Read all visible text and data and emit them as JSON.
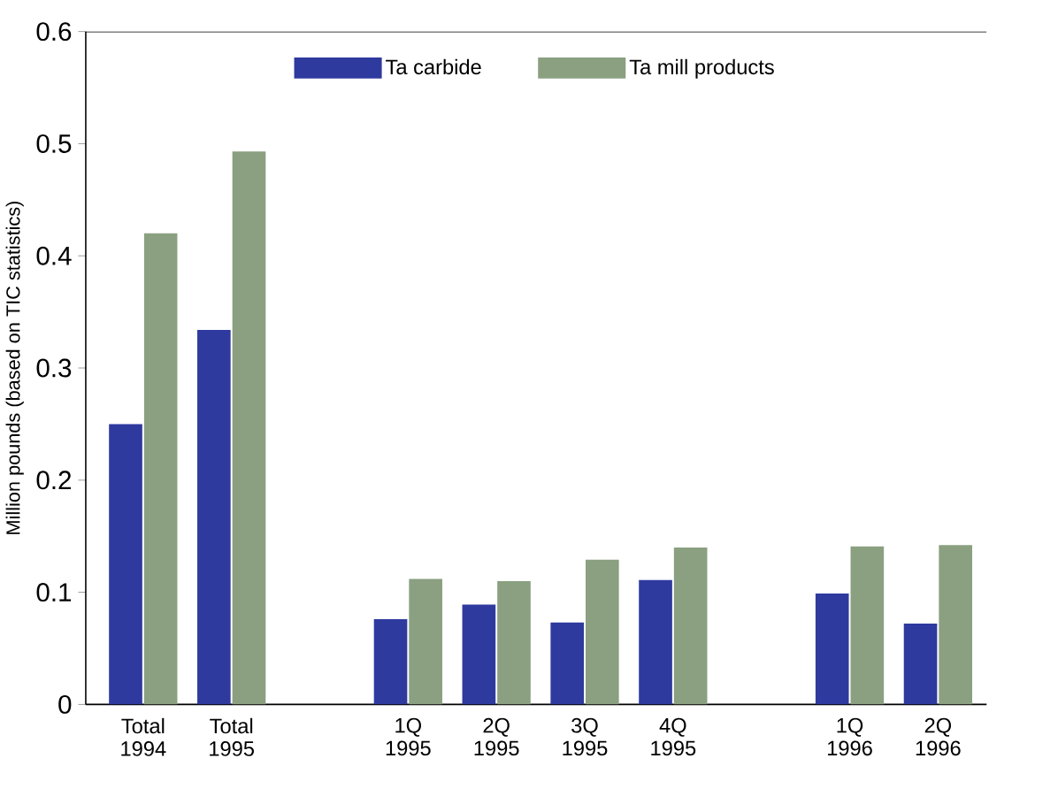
{
  "chart_data": {
    "type": "bar",
    "ylabel": "Million pounds (based on TIC statistics)",
    "categories": [
      "Total 1994",
      "Total 1995",
      null,
      "1Q 1995",
      "2Q 1995",
      "3Q 1995",
      "4Q 1995",
      null,
      "1Q 1996",
      "2Q 1996"
    ],
    "series": [
      {
        "name": "Ta carbide",
        "color": "#2e3a9e",
        "values": [
          0.25,
          0.334,
          null,
          0.076,
          0.089,
          0.073,
          0.111,
          null,
          0.099,
          0.072
        ]
      },
      {
        "name": "Ta mill products",
        "color": "#8aa080",
        "values": [
          0.42,
          0.493,
          null,
          0.112,
          0.11,
          0.129,
          0.14,
          null,
          0.141,
          0.142
        ]
      }
    ],
    "ylim": [
      0,
      0.6
    ],
    "yticks": [
      0,
      0.1,
      0.2,
      0.3,
      0.4,
      0.5,
      0.6
    ],
    "legend": "top",
    "grid": false
  }
}
